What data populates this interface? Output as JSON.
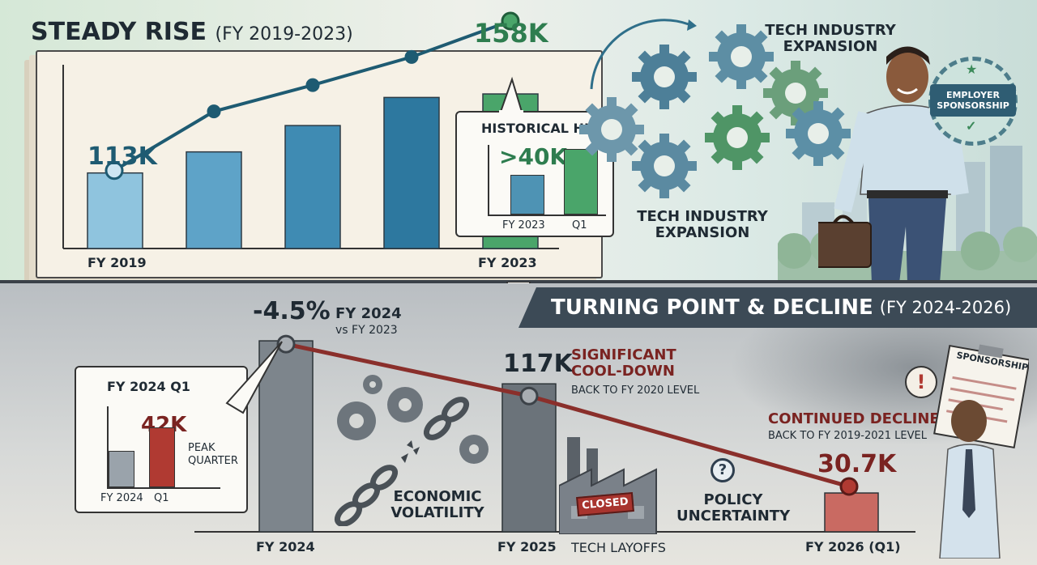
{
  "top": {
    "title": "STEADY RISE",
    "title_sub": "(FY 2019-2023)",
    "start_value": "113K",
    "end_value": "158K",
    "x_start": "FY 2019",
    "x_end": "FY 2023",
    "callout": {
      "title": "HISTORICAL HIGH",
      "value": ">40K",
      "bars": [
        {
          "label": "FY 2023",
          "value": 0.55,
          "color": "#4e93b4"
        },
        {
          "label": "Q1",
          "value": 0.9,
          "color": "#4aa56a"
        }
      ]
    },
    "gears_label_top": "TECH INDUSTRY EXPANSION",
    "gears_label_bottom": "TECH INDUSTRY EXPANSION",
    "badge": "EMPLOYER SPONSORSHIP"
  },
  "bottom": {
    "banner_title": "TURNING POINT & DECLINE",
    "banner_sub": "(FY 2024-2026)",
    "change_value": "-4.5%",
    "change_note_1": "FY 2024",
    "change_note_2": "vs FY 2023",
    "mid_value": "117K",
    "mid_title_1": "SIGNIFICANT",
    "mid_title_2": "COOL-DOWN",
    "mid_note": "BACK TO FY 2020 LEVEL",
    "end_title": "CONTINUED DECLINE",
    "end_note": "BACK TO FY 2019-2021 LEVEL",
    "end_value": "30.7K",
    "x_labels": [
      "FY 2024",
      "FY 2025",
      "FY 2026 (Q1)"
    ],
    "callout": {
      "title": "FY 2024 Q1",
      "value": "42K",
      "note_1": "PEAK",
      "note_2": "QUARTER",
      "bars": [
        {
          "label": "FY 2024",
          "value": 0.5,
          "color": "#9aa3ab"
        },
        {
          "label": "Q1",
          "value": 0.82,
          "color": "#b03a32"
        }
      ]
    },
    "factor_1": "ECONOMIC VOLATILITY",
    "factor_2": "TECH LAYOFFS",
    "factor_2_sign": "CLOSED",
    "factor_3": "POLICY UNCERTAINTY",
    "question_mark": "?",
    "alert_mark": "!",
    "clipboard": "SPONSORSHIP"
  },
  "chart_data": [
    {
      "type": "bar",
      "title": "STEADY RISE (FY 2019-2023)",
      "categories": [
        "FY 2019",
        "",
        "",
        "",
        "FY 2023"
      ],
      "values": [
        113,
        125,
        140,
        156,
        158
      ],
      "units": "K",
      "data_labels": {
        "FY 2019": "113K",
        "FY 2023": "158K"
      },
      "trend_line": true,
      "colors": [
        "#8fc4de",
        "#5ea3c8",
        "#3f8bb3",
        "#2d789f",
        "#4aa56a"
      ]
    },
    {
      "type": "bar",
      "title": "TURNING POINT & DECLINE (FY 2024-2026)",
      "categories": [
        "FY 2024",
        "FY 2025",
        "FY 2026 (Q1)"
      ],
      "values": [
        151,
        117,
        30.7
      ],
      "units": "K",
      "data_labels": {
        "FY 2024": "-4.5%",
        "FY 2025": "117K",
        "FY 2026 (Q1)": "30.7K"
      },
      "trend_line": true,
      "colors": [
        "#7d858c",
        "#6b737a",
        "#c96a62"
      ]
    }
  ]
}
